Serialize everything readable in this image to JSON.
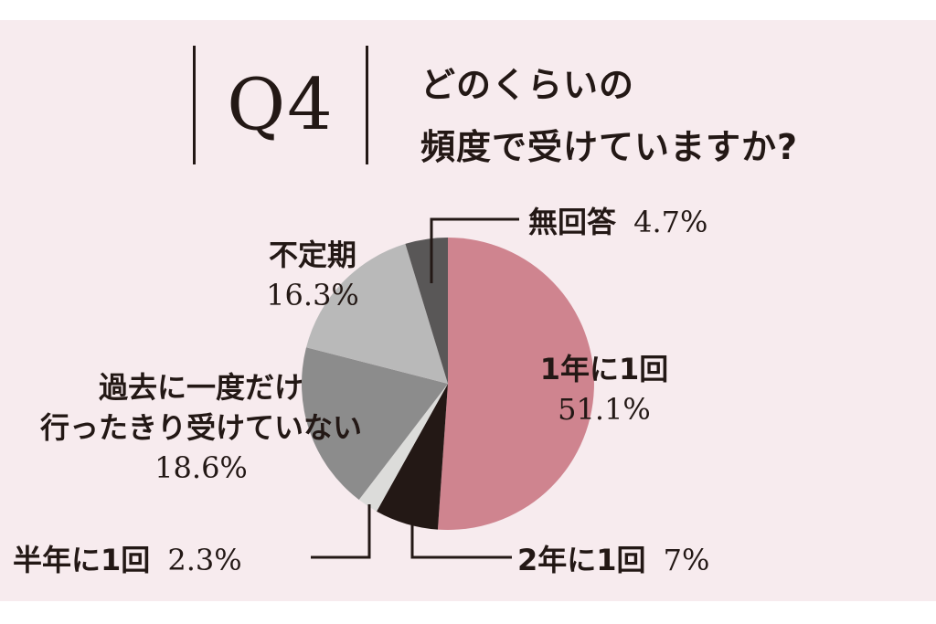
{
  "header": {
    "q_label": "Q4",
    "title_line1": "どのくらいの",
    "title_line2": "頻度で受けていますか?"
  },
  "chart_data": {
    "type": "pie",
    "start_angle_deg": 0,
    "direction": "clockwise",
    "slices": [
      {
        "label": "1年に1回",
        "value": 51.1,
        "display": "51.1%",
        "color": "#cf848f"
      },
      {
        "label": "2年に1回",
        "value": 7,
        "display": "7%",
        "color": "#231815"
      },
      {
        "label": "半年に1回",
        "value": 2.3,
        "display": "2.3%",
        "color": "#dcdcda"
      },
      {
        "label": "過去に一度だけ行ったきり受けていない",
        "value": 18.6,
        "display": "18.6%",
        "color": "#8c8c8c"
      },
      {
        "label": "不定期",
        "value": 16.3,
        "display": "16.3%",
        "color": "#b9b9b9"
      },
      {
        "label": "無回答",
        "value": 4.7,
        "display": "4.7%",
        "color": "#595757"
      }
    ]
  },
  "labels": {
    "s0_name": "1年に1回",
    "s0_value": "51.1%",
    "s1_name": "2年に1回",
    "s1_value": "7%",
    "s2_name": "半年に1回",
    "s2_value": "2.3%",
    "s3_name_line1": "過去に一度だけ",
    "s3_name_line2": "行ったきり受けていない",
    "s3_value": "18.6%",
    "s4_name": "不定期",
    "s4_value": "16.3%",
    "s5_name": "無回答",
    "s5_value": "4.7%"
  }
}
